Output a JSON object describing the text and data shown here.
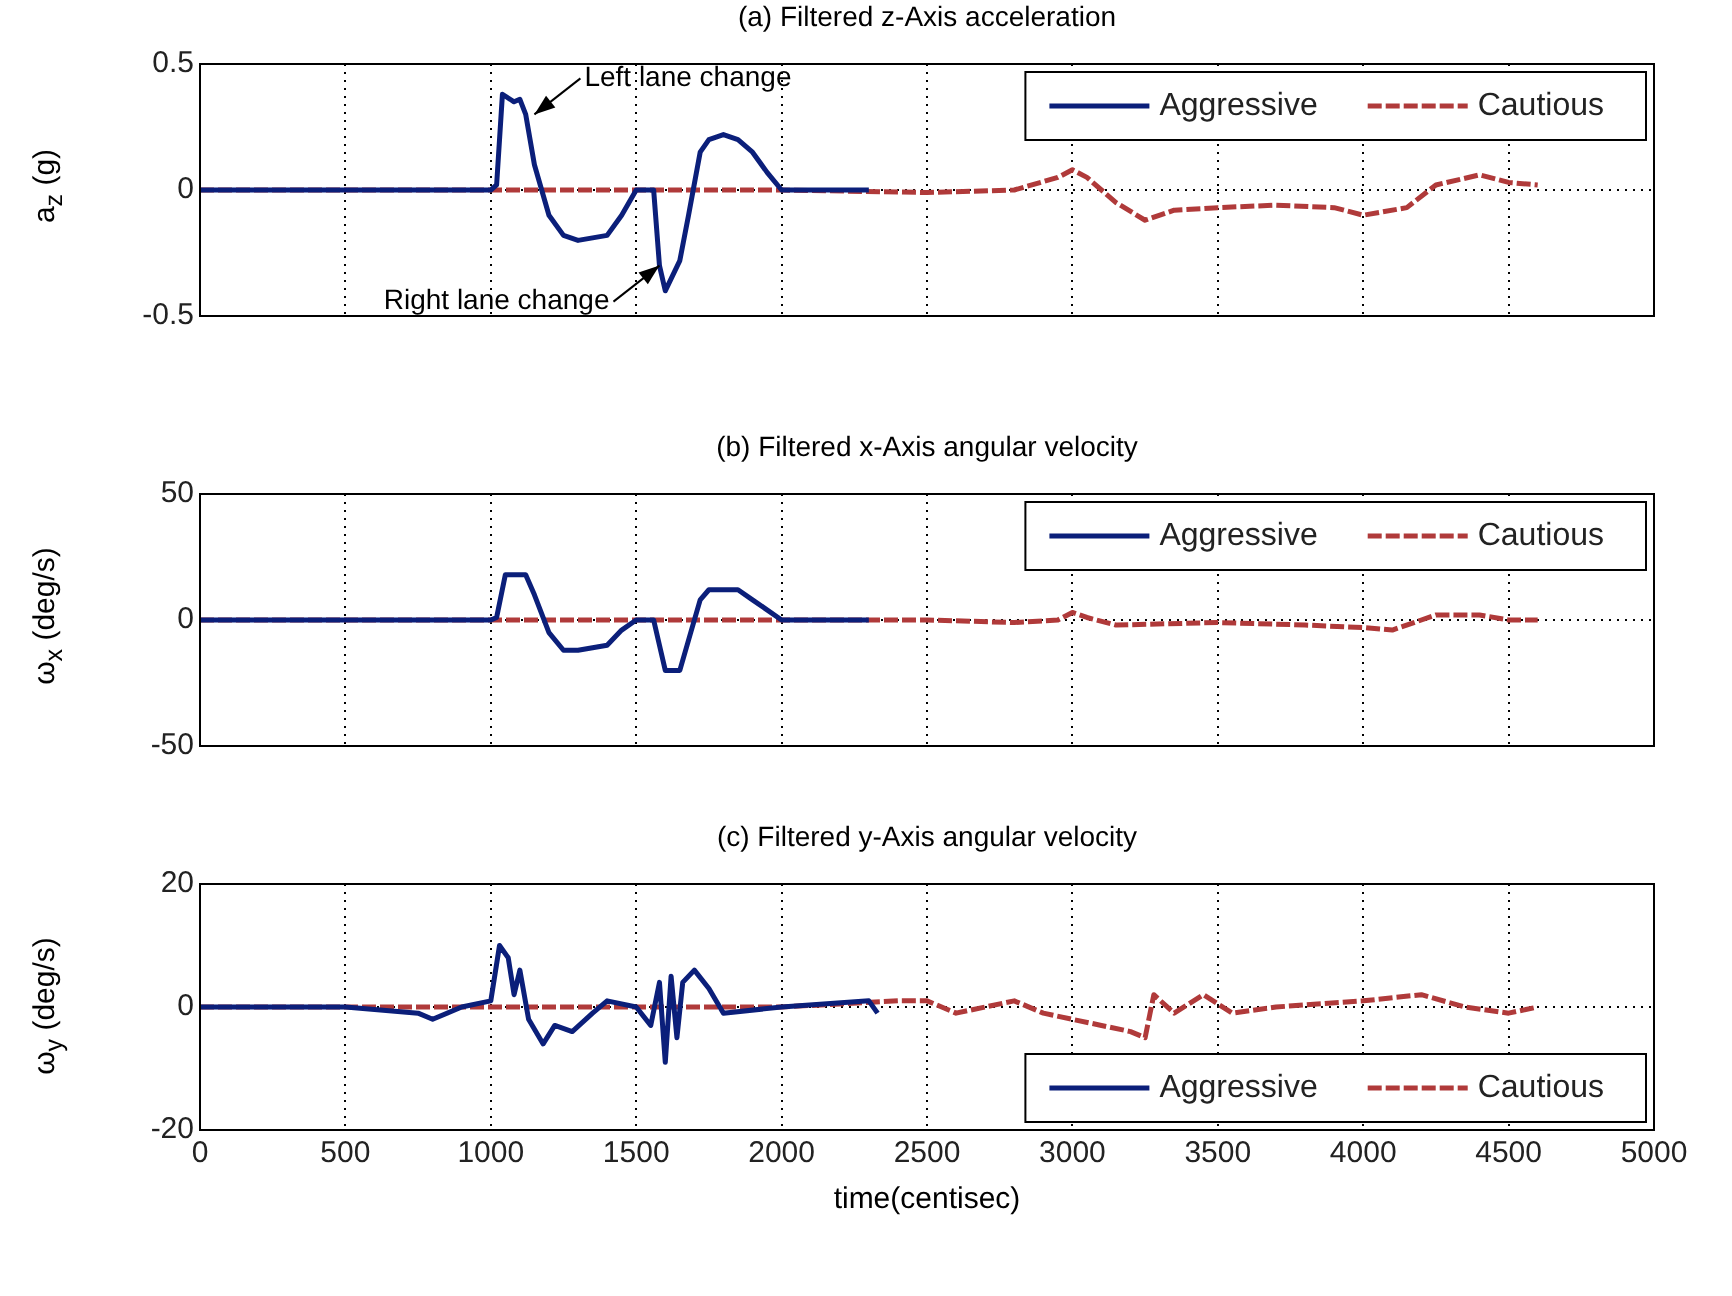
{
  "chart_data": [
    {
      "type": "line",
      "title": "(a) Filtered z-Axis acceleration",
      "ylabel": "a$_{z}$ (g)",
      "xlim": [
        0,
        5000
      ],
      "xticks": [
        0,
        500,
        1000,
        1500,
        2000,
        2500,
        3000,
        3500,
        4000,
        4500,
        5000
      ],
      "ylim": [
        -0.5,
        0.5
      ],
      "yticks": [
        -0.5,
        0,
        0.5
      ],
      "tick_labels": "y",
      "grid": true,
      "legend": "top right",
      "annotations": [
        {
          "text": "Left lane change",
          "x": 1150,
          "y": 0.3
        },
        {
          "text": "Right lane change",
          "x": 1580,
          "y": -0.3
        }
      ],
      "series": [
        {
          "name": "Aggressive",
          "color": "#0b1f7a",
          "line_style": "solid",
          "x": [
            0,
            500,
            1000,
            1020,
            1040,
            1080,
            1100,
            1120,
            1150,
            1200,
            1250,
            1300,
            1400,
            1450,
            1500,
            1560,
            1580,
            1600,
            1650,
            1680,
            1720,
            1750,
            1800,
            1850,
            1900,
            1950,
            2000,
            2300
          ],
          "values": [
            0,
            0,
            0,
            0.02,
            0.38,
            0.35,
            0.36,
            0.3,
            0.1,
            -0.1,
            -0.18,
            -0.2,
            -0.18,
            -0.1,
            0,
            0,
            -0.3,
            -0.4,
            -0.28,
            -0.1,
            0.15,
            0.2,
            0.22,
            0.2,
            0.15,
            0.07,
            0,
            0
          ]
        },
        {
          "name": "Cautious",
          "color": "#b03a3a",
          "line_style": "dashed",
          "x": [
            0,
            1000,
            2000,
            2500,
            2800,
            2950,
            3000,
            3050,
            3150,
            3250,
            3350,
            3500,
            3700,
            3900,
            4000,
            4150,
            4250,
            4400,
            4500,
            4600
          ],
          "values": [
            0,
            0,
            0,
            -0.01,
            0,
            0.05,
            0.08,
            0.05,
            -0.05,
            -0.12,
            -0.08,
            -0.07,
            -0.06,
            -0.07,
            -0.1,
            -0.07,
            0.02,
            0.06,
            0.03,
            0.02
          ]
        }
      ]
    },
    {
      "type": "line",
      "title": "(b) Filtered x-Axis angular velocity",
      "ylabel": "ω$_{x}$ (deg/s)",
      "xlim": [
        0,
        5000
      ],
      "xticks": [
        0,
        500,
        1000,
        1500,
        2000,
        2500,
        3000,
        3500,
        4000,
        4500,
        5000
      ],
      "ylim": [
        -50,
        50
      ],
      "yticks": [
        -50,
        0,
        50
      ],
      "tick_labels": "y",
      "grid": true,
      "legend": "top right",
      "series": [
        {
          "name": "Aggressive",
          "color": "#0b1f7a",
          "line_style": "solid",
          "x": [
            0,
            1000,
            1020,
            1050,
            1120,
            1150,
            1200,
            1250,
            1300,
            1400,
            1450,
            1500,
            1560,
            1580,
            1600,
            1650,
            1680,
            1720,
            1750,
            1850,
            1900,
            2000,
            2300
          ],
          "values": [
            0,
            0,
            1,
            18,
            18,
            10,
            -5,
            -12,
            -12,
            -10,
            -4,
            0,
            0,
            -10,
            -20,
            -20,
            -8,
            8,
            12,
            12,
            8,
            0,
            0
          ]
        },
        {
          "name": "Cautious",
          "color": "#b03a3a",
          "line_style": "dashed",
          "x": [
            0,
            1000,
            2000,
            2500,
            2800,
            2950,
            3000,
            3050,
            3150,
            3500,
            3800,
            4000,
            4100,
            4250,
            4400,
            4500,
            4600
          ],
          "values": [
            0,
            0,
            0,
            0,
            -1,
            0,
            3,
            1,
            -2,
            -1,
            -2,
            -3,
            -4,
            2,
            2,
            0,
            0
          ]
        }
      ]
    },
    {
      "type": "line",
      "title": "(c) Filtered y-Axis angular velocity",
      "xlabel": "time(centisec)",
      "ylabel": "ω$_{y}$ (deg/s)",
      "xlim": [
        0,
        5000
      ],
      "xticks": [
        0,
        500,
        1000,
        1500,
        2000,
        2500,
        3000,
        3500,
        4000,
        4500,
        5000
      ],
      "ylim": [
        -20,
        20
      ],
      "yticks": [
        -20,
        0,
        20
      ],
      "grid": true,
      "legend": "bottom right",
      "series": [
        {
          "name": "Aggressive",
          "color": "#0b1f7a",
          "line_style": "solid",
          "x": [
            0,
            500,
            750,
            800,
            900,
            1000,
            1030,
            1060,
            1080,
            1100,
            1130,
            1180,
            1220,
            1280,
            1350,
            1400,
            1500,
            1550,
            1580,
            1600,
            1620,
            1640,
            1660,
            1700,
            1750,
            1800,
            2000,
            2300,
            2330
          ],
          "values": [
            0,
            0,
            -1,
            -2,
            0,
            1,
            10,
            8,
            2,
            6,
            -2,
            -6,
            -3,
            -4,
            -1,
            1,
            0,
            -3,
            4,
            -9,
            5,
            -5,
            4,
            6,
            3,
            -1,
            0,
            1,
            -1
          ]
        },
        {
          "name": "Cautious",
          "color": "#b03a3a",
          "line_style": "dashed",
          "x": [
            0,
            1000,
            2000,
            2400,
            2500,
            2600,
            2800,
            2900,
            3000,
            3100,
            3200,
            3250,
            3280,
            3350,
            3450,
            3550,
            3700,
            4000,
            4200,
            4350,
            4500,
            4600
          ],
          "values": [
            0,
            0,
            0,
            1,
            1,
            -1,
            1,
            -1,
            -2,
            -3,
            -4,
            -5,
            2,
            -1,
            2,
            -1,
            0,
            1,
            2,
            0,
            -1,
            0
          ]
        }
      ]
    }
  ]
}
